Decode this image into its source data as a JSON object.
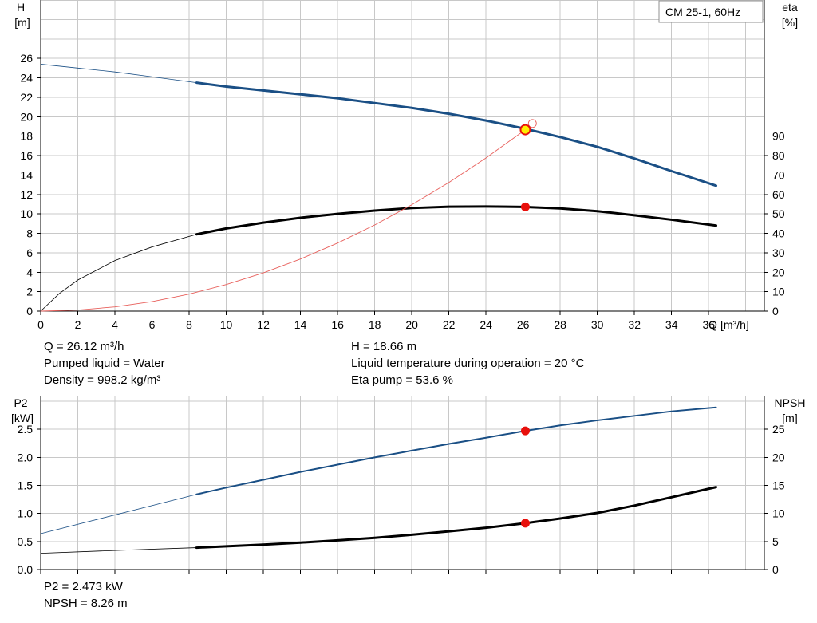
{
  "chart_data": [
    {
      "type": "line",
      "panel": "top",
      "legend": "CM 25-1, 60Hz",
      "legend_position": "top-right",
      "grid": true,
      "x_axis": {
        "label": "Q",
        "unit": "[m³/h]",
        "range": [
          0,
          39
        ],
        "ticks": [
          0,
          2,
          4,
          6,
          8,
          10,
          12,
          14,
          16,
          18,
          20,
          22,
          24,
          26,
          28,
          30,
          32,
          34,
          36
        ]
      },
      "y_left": {
        "label": "H",
        "unit": "[m]",
        "range": [
          0,
          32
        ],
        "ticks": [
          0,
          2,
          4,
          6,
          8,
          10,
          12,
          14,
          16,
          18,
          20,
          22,
          24,
          26
        ]
      },
      "y_right": {
        "label": "eta",
        "unit": "[%]",
        "range": [
          0,
          160
        ],
        "ticks": [
          0,
          10,
          20,
          30,
          40,
          50,
          60,
          70,
          80,
          90
        ]
      },
      "series": [
        {
          "key": "head",
          "axis": "left",
          "color": "#1a4f85",
          "extension_x": [
            0,
            2,
            4,
            6,
            8.4
          ],
          "extension_y": [
            25.4,
            25.0,
            24.6,
            24.1,
            23.5
          ],
          "x": [
            8.4,
            10,
            12,
            14,
            16,
            18,
            20,
            22,
            24,
            26,
            28,
            30,
            32,
            34,
            36.4
          ],
          "y": [
            23.5,
            23.1,
            22.7,
            22.3,
            21.9,
            21.4,
            20.9,
            20.3,
            19.6,
            18.8,
            17.9,
            16.9,
            15.7,
            14.4,
            12.9
          ]
        },
        {
          "key": "eta",
          "axis": "right",
          "color": "#000000",
          "extension_x": [
            0,
            1,
            2,
            4,
            6,
            8.4
          ],
          "extension_y": [
            0,
            9,
            16,
            26,
            33,
            39.5
          ],
          "x": [
            8.4,
            10,
            12,
            14,
            16,
            18,
            20,
            22,
            24,
            26,
            28,
            30,
            32,
            34,
            36.4
          ],
          "y": [
            39.5,
            42.5,
            45.5,
            48,
            50,
            51.7,
            53,
            53.7,
            53.8,
            53.6,
            52.8,
            51.4,
            49.3,
            47,
            44
          ]
        },
        {
          "key": "system-curve",
          "axis": "left",
          "color": "#e8605c",
          "x": [
            0,
            2,
            4,
            6,
            8,
            10,
            12,
            14,
            16,
            18,
            20,
            22,
            24,
            26.12
          ],
          "y": [
            0,
            0.11,
            0.44,
            0.98,
            1.75,
            2.73,
            3.93,
            5.36,
            7.0,
            8.86,
            10.94,
            13.23,
            15.75,
            18.66
          ]
        }
      ],
      "operating_points": [
        {
          "x": 26.12,
          "y": 18.66,
          "axis": "left",
          "style": "yellow"
        },
        {
          "x": 26.12,
          "y": 53.6,
          "axis": "right",
          "style": "red"
        }
      ],
      "info_left": [
        "Q = 26.12 m³/h",
        "Pumped liquid = Water",
        "Density = 998.2 kg/m³"
      ],
      "info_right": [
        "H = 18.66 m",
        "Liquid temperature during operation = 20 °C",
        "Eta pump = 53.6 %"
      ]
    },
    {
      "type": "line",
      "panel": "bottom",
      "grid": true,
      "x_axis": {
        "range": [
          0,
          39
        ]
      },
      "y_left": {
        "label": "P2",
        "unit": "[kW]",
        "range": [
          0,
          3.1
        ],
        "ticks": [
          "0.0",
          "0.5",
          "1.0",
          "1.5",
          "2.0",
          "2.5"
        ]
      },
      "y_right": {
        "label": "NPSH",
        "unit": "[m]",
        "range": [
          0,
          31
        ],
        "ticks": [
          0,
          5,
          10,
          15,
          20,
          25
        ]
      },
      "series": [
        {
          "key": "p2",
          "axis": "left",
          "color": "#1a4f85",
          "extension_x": [
            0,
            8.4
          ],
          "extension_y": [
            0.64,
            1.34
          ],
          "x": [
            8.4,
            10,
            12,
            14,
            16,
            18,
            20,
            22,
            24,
            26.12,
            28,
            30,
            32,
            34,
            36.4
          ],
          "y": [
            1.34,
            1.46,
            1.6,
            1.74,
            1.87,
            2.0,
            2.12,
            2.24,
            2.35,
            2.473,
            2.57,
            2.66,
            2.74,
            2.82,
            2.89
          ]
        },
        {
          "key": "npsh",
          "axis": "right",
          "color": "#000000",
          "extension_x": [
            0,
            4,
            8.4
          ],
          "extension_y": [
            2.9,
            3.4,
            3.9
          ],
          "x": [
            8.4,
            10,
            12,
            14,
            16,
            18,
            20,
            22,
            24,
            26.12,
            28,
            30,
            32,
            34,
            36.4
          ],
          "y": [
            3.9,
            4.15,
            4.45,
            4.8,
            5.2,
            5.65,
            6.2,
            6.8,
            7.45,
            8.26,
            9.1,
            10.1,
            11.4,
            12.9,
            14.7
          ]
        }
      ],
      "operating_points": [
        {
          "x": 26.12,
          "y": 2.473,
          "axis": "left",
          "style": "red"
        },
        {
          "x": 26.12,
          "y": 8.26,
          "axis": "right",
          "style": "red"
        }
      ],
      "info_left": [
        "P2 = 2.473 kW",
        "NPSH = 8.26 m"
      ]
    }
  ],
  "colors": {
    "grid": "#c8c8c8",
    "head": "#1a4f85",
    "eta": "#000000",
    "system": "#e8605c",
    "marker_red": "#e8100c",
    "marker_yellow": "#ffee00"
  }
}
